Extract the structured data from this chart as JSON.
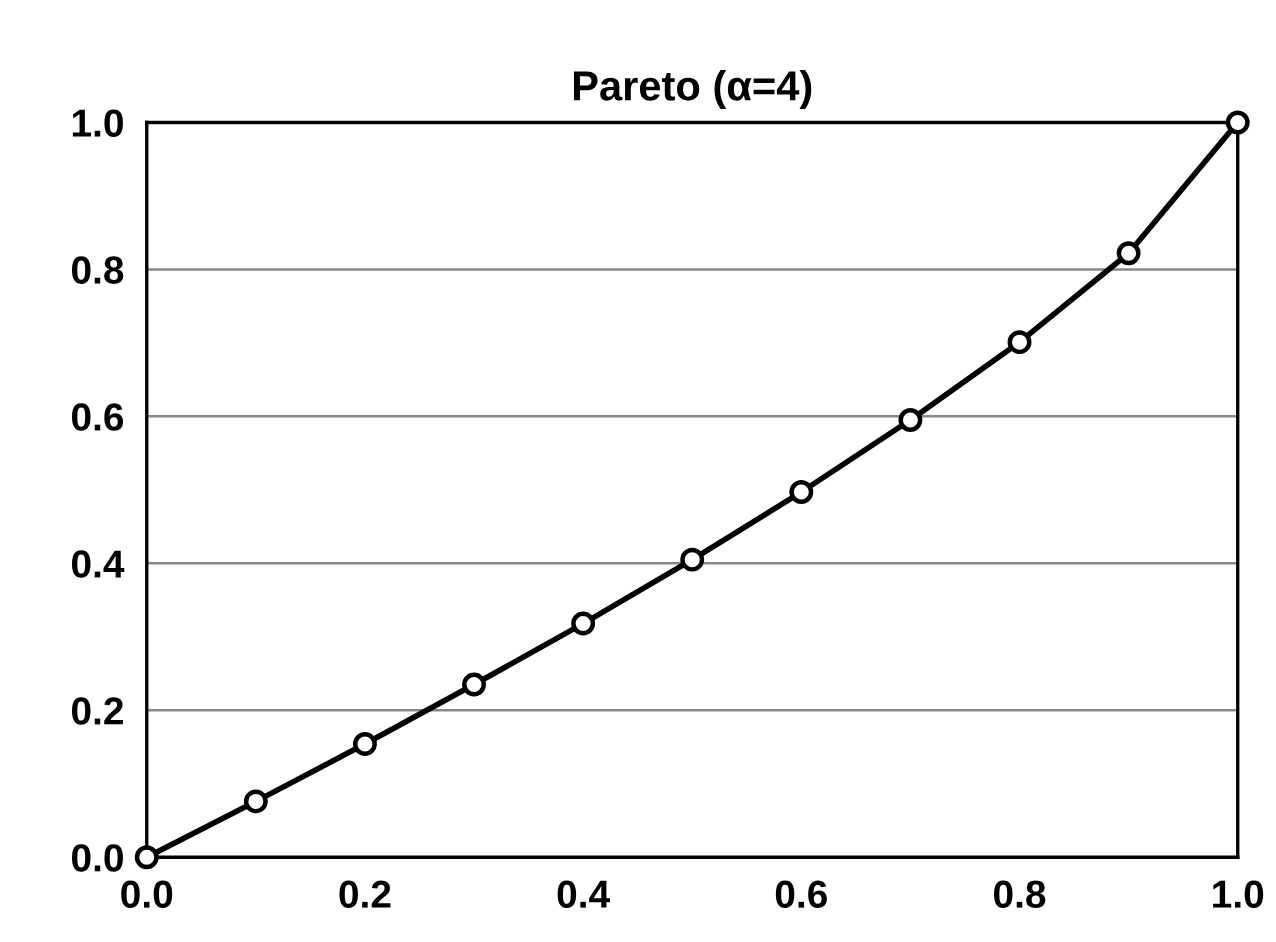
{
  "chart_data": {
    "type": "line",
    "title": "Pareto (α=4)",
    "x": [
      0,
      0.1,
      0.2,
      0.3,
      0.4,
      0.5,
      0.6,
      0.7,
      0.8,
      0.9,
      1.0
    ],
    "series": [
      {
        "color": "#000000",
        "values": [
          0,
          0.076,
          0.154,
          0.235,
          0.318,
          0.405,
          0.497,
          0.595,
          0.701,
          0.822,
          1.0
        ]
      }
    ],
    "xlim": [
      0,
      1
    ],
    "xticks": [
      {
        "value": 0,
        "label": "0.0"
      },
      {
        "value": 0.2,
        "label": "0.2"
      },
      {
        "value": 0.4,
        "label": "0.4"
      },
      {
        "value": 0.6,
        "label": "0.6"
      },
      {
        "value": 0.8,
        "label": "0.8"
      },
      {
        "value": 1,
        "label": "1.0"
      }
    ],
    "ylim": [
      0,
      1
    ],
    "yticks": [
      {
        "value": 0,
        "label": "0.0"
      },
      {
        "value": 0.2,
        "label": "0.2"
      },
      {
        "value": 0.4,
        "label": "0.4"
      },
      {
        "value": 0.6,
        "label": "0.6"
      },
      {
        "value": 0.8,
        "label": "0.8"
      },
      {
        "value": 1,
        "label": "1.0"
      }
    ],
    "grid": "y",
    "marker": "circle",
    "line_style": "solid"
  }
}
